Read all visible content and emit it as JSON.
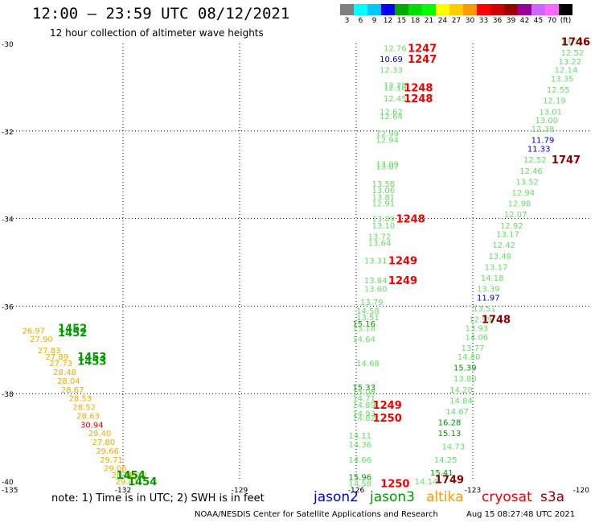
{
  "title": "12:00 – 23:59 UTC 08/12/2021",
  "subtitle": "12 hour collection of altimeter wave heights",
  "colorbar": {
    "colors": [
      "#808080",
      "#00ffff",
      "#00c8ff",
      "#0000ff",
      "#00aa00",
      "#00dd00",
      "#00ff00",
      "#ffff00",
      "#ffcc00",
      "#ff9900",
      "#ff0000",
      "#cc0000",
      "#990000",
      "#990099",
      "#cc66ff",
      "#ff66ff",
      "#000000"
    ],
    "labels": [
      "3",
      "6",
      "9",
      "12",
      "15",
      "18",
      "21",
      "24",
      "27",
      "30",
      "33",
      "36",
      "39",
      "42",
      "45",
      "70",
      "(ft)"
    ]
  },
  "axes": {
    "lat_ticks": [
      "-30",
      "-32",
      "-34",
      "-36",
      "-38",
      "-40"
    ],
    "lon_ticks": [
      "-135",
      "-132",
      "-129",
      "-126",
      "-123",
      "-120"
    ],
    "lat_range": [
      -40,
      -30
    ],
    "lon_range": [
      -135,
      -120
    ]
  },
  "readings": [
    {
      "lon": -125.0,
      "lat": -30.1,
      "v": "12.76",
      "c": "#66dd66"
    },
    {
      "lon": -125.1,
      "lat": -30.35,
      "v": "10.69",
      "c": "#0000cc"
    },
    {
      "lon": -125.1,
      "lat": -30.6,
      "v": "12.33",
      "c": "#66dd66"
    },
    {
      "lon": -125.0,
      "lat": -30.95,
      "v": "12.28",
      "c": "#66dd66"
    },
    {
      "lon": -125.0,
      "lat": -31.0,
      "v": "12.18",
      "c": "#66dd66"
    },
    {
      "lon": -125.0,
      "lat": -31.25,
      "v": "12.45",
      "c": "#66dd66"
    },
    {
      "lon": -125.1,
      "lat": -31.55,
      "v": "12.62",
      "c": "#66dd66"
    },
    {
      "lon": -125.1,
      "lat": -31.65,
      "v": "12.64",
      "c": "#66dd66"
    },
    {
      "lon": -125.2,
      "lat": -32.05,
      "v": "12.99",
      "c": "#66dd66"
    },
    {
      "lon": -125.2,
      "lat": -32.2,
      "v": "12.94",
      "c": "#66dd66"
    },
    {
      "lon": -125.2,
      "lat": -32.75,
      "v": "13.09",
      "c": "#66dd66"
    },
    {
      "lon": -125.2,
      "lat": -32.8,
      "v": "13.07",
      "c": "#66dd66"
    },
    {
      "lon": -125.3,
      "lat": -33.2,
      "v": "13.58",
      "c": "#66dd66"
    },
    {
      "lon": -125.3,
      "lat": -33.35,
      "v": "13.06",
      "c": "#66dd66"
    },
    {
      "lon": -125.3,
      "lat": -33.5,
      "v": "13.81",
      "c": "#66dd66"
    },
    {
      "lon": -125.3,
      "lat": -33.65,
      "v": "12.91",
      "c": "#66dd66"
    },
    {
      "lon": -125.3,
      "lat": -34.0,
      "v": "13.89",
      "c": "#66dd66"
    },
    {
      "lon": -125.3,
      "lat": -34.15,
      "v": "13.10",
      "c": "#66dd66"
    },
    {
      "lon": -125.4,
      "lat": -34.4,
      "v": "13.72",
      "c": "#66dd66"
    },
    {
      "lon": -125.4,
      "lat": -34.55,
      "v": "13.64",
      "c": "#66dd66"
    },
    {
      "lon": -125.5,
      "lat": -34.95,
      "v": "13.31",
      "c": "#66dd66"
    },
    {
      "lon": -125.5,
      "lat": -35.4,
      "v": "13.84",
      "c": "#66dd66"
    },
    {
      "lon": -125.5,
      "lat": -35.6,
      "v": "13.60",
      "c": "#66dd66"
    },
    {
      "lon": -125.6,
      "lat": -35.9,
      "v": "13.79",
      "c": "#66dd66"
    },
    {
      "lon": -125.7,
      "lat": -36.1,
      "v": "14.58",
      "c": "#66dd66"
    },
    {
      "lon": -125.7,
      "lat": -36.25,
      "v": "13.51",
      "c": "#66dd66"
    },
    {
      "lon": -125.8,
      "lat": -36.4,
      "v": "15.16",
      "c": "#009900"
    },
    {
      "lon": -125.8,
      "lat": -36.5,
      "v": "15.18",
      "c": "#66dd66"
    },
    {
      "lon": -125.8,
      "lat": -36.75,
      "v": "14.64",
      "c": "#66dd66"
    },
    {
      "lon": -125.7,
      "lat": -37.3,
      "v": "14.68",
      "c": "#66dd66"
    },
    {
      "lon": -125.8,
      "lat": -37.85,
      "v": "15.33",
      "c": "#009900"
    },
    {
      "lon": -125.8,
      "lat": -37.95,
      "v": "15.08",
      "c": "#66dd66"
    },
    {
      "lon": -125.8,
      "lat": -38.1,
      "v": "14.71",
      "c": "#66dd66"
    },
    {
      "lon": -125.8,
      "lat": -38.25,
      "v": "14.89",
      "c": "#66dd66"
    },
    {
      "lon": -125.8,
      "lat": -38.45,
      "v": "14.93",
      "c": "#66dd66"
    },
    {
      "lon": -125.8,
      "lat": -38.55,
      "v": "14.82",
      "c": "#66dd66"
    },
    {
      "lon": -125.9,
      "lat": -38.95,
      "v": "14.11",
      "c": "#66dd66"
    },
    {
      "lon": -125.9,
      "lat": -39.15,
      "v": "14.36",
      "c": "#66dd66"
    },
    {
      "lon": -125.9,
      "lat": -39.5,
      "v": "14.66",
      "c": "#66dd66"
    },
    {
      "lon": -125.9,
      "lat": -39.9,
      "v": "15.96",
      "c": "#009900"
    },
    {
      "lon": -125.9,
      "lat": -40.05,
      "v": "14.58",
      "c": "#66dd66"
    },
    {
      "lon": -124.2,
      "lat": -40.0,
      "v": "14.14",
      "c": "#66dd66"
    },
    {
      "lon": -123.8,
      "lat": -39.8,
      "v": "15.41",
      "c": "#009900"
    },
    {
      "lon": -123.7,
      "lat": -39.5,
      "v": "14.25",
      "c": "#66dd66"
    },
    {
      "lon": -123.5,
      "lat": -39.2,
      "v": "14.73",
      "c": "#66dd66"
    },
    {
      "lon": -123.6,
      "lat": -38.9,
      "v": "15.13",
      "c": "#009900"
    },
    {
      "lon": -123.6,
      "lat": -38.65,
      "v": "16.28",
      "c": "#009900"
    },
    {
      "lon": -123.4,
      "lat": -38.4,
      "v": "14.67",
      "c": "#66dd66"
    },
    {
      "lon": -123.3,
      "lat": -38.15,
      "v": "14.84",
      "c": "#66dd66"
    },
    {
      "lon": -123.3,
      "lat": -37.9,
      "v": "14.20",
      "c": "#66dd66"
    },
    {
      "lon": -123.2,
      "lat": -37.65,
      "v": "13.80",
      "c": "#66dd66"
    },
    {
      "lon": -123.2,
      "lat": -37.4,
      "v": "15.39",
      "c": "#009900"
    },
    {
      "lon": -123.1,
      "lat": -37.15,
      "v": "14.80",
      "c": "#66dd66"
    },
    {
      "lon": -123.0,
      "lat": -36.95,
      "v": "13.77",
      "c": "#66dd66"
    },
    {
      "lon": -122.9,
      "lat": -36.7,
      "v": "14.06",
      "c": "#66dd66"
    },
    {
      "lon": -122.9,
      "lat": -36.5,
      "v": "13.93",
      "c": "#66dd66"
    },
    {
      "lon": -122.8,
      "lat": -36.3,
      "v": "12.99",
      "c": "#66dd66"
    },
    {
      "lon": -122.7,
      "lat": -36.05,
      "v": "13.51",
      "c": "#66dd66"
    },
    {
      "lon": -122.6,
      "lat": -35.8,
      "v": "11.97",
      "c": "#0000cc"
    },
    {
      "lon": -122.6,
      "lat": -35.6,
      "v": "13.39",
      "c": "#66dd66"
    },
    {
      "lon": -122.5,
      "lat": -35.35,
      "v": "14.18",
      "c": "#66dd66"
    },
    {
      "lon": -122.4,
      "lat": -35.1,
      "v": "13.17",
      "c": "#66dd66"
    },
    {
      "lon": -122.3,
      "lat": -34.85,
      "v": "13.48",
      "c": "#66dd66"
    },
    {
      "lon": -122.2,
      "lat": -34.6,
      "v": "12.42",
      "c": "#66dd66"
    },
    {
      "lon": -122.1,
      "lat": -34.35,
      "v": "13.17",
      "c": "#66dd66"
    },
    {
      "lon": -122.0,
      "lat": -34.15,
      "v": "12.92",
      "c": "#66dd66"
    },
    {
      "lon": -121.9,
      "lat": -33.9,
      "v": "12.07",
      "c": "#66dd66"
    },
    {
      "lon": -121.8,
      "lat": -33.65,
      "v": "12.98",
      "c": "#66dd66"
    },
    {
      "lon": -121.7,
      "lat": -33.4,
      "v": "12.94",
      "c": "#66dd66"
    },
    {
      "lon": -121.6,
      "lat": -33.15,
      "v": "13.52",
      "c": "#66dd66"
    },
    {
      "lon": -121.5,
      "lat": -32.9,
      "v": "12.46",
      "c": "#66dd66"
    },
    {
      "lon": -121.4,
      "lat": -32.65,
      "v": "12.52",
      "c": "#66dd66"
    },
    {
      "lon": -121.3,
      "lat": -32.4,
      "v": "11.33",
      "c": "#0000cc"
    },
    {
      "lon": -121.2,
      "lat": -32.2,
      "v": "11.79",
      "c": "#0000cc"
    },
    {
      "lon": -121.2,
      "lat": -31.95,
      "v": "12.38",
      "c": "#66dd66"
    },
    {
      "lon": -121.1,
      "lat": -31.75,
      "v": "13.00",
      "c": "#66dd66"
    },
    {
      "lon": -121.0,
      "lat": -31.55,
      "v": "13.01",
      "c": "#66dd66"
    },
    {
      "lon": -120.9,
      "lat": -31.3,
      "v": "12.19",
      "c": "#66dd66"
    },
    {
      "lon": -120.8,
      "lat": -31.05,
      "v": "12.55",
      "c": "#66dd66"
    },
    {
      "lon": -120.7,
      "lat": -30.8,
      "v": "13.35",
      "c": "#66dd66"
    },
    {
      "lon": -120.6,
      "lat": -30.6,
      "v": "12.14",
      "c": "#66dd66"
    },
    {
      "lon": -120.5,
      "lat": -30.4,
      "v": "13.22",
      "c": "#66dd66"
    },
    {
      "lon": -120.4,
      "lat": -30.2,
      "v": "12.52",
      "c": "#66dd66"
    },
    {
      "lon": -120.3,
      "lat": -29.95,
      "v": "13.11",
      "c": "#66dd66"
    },
    {
      "lon": -134.3,
      "lat": -36.55,
      "v": "26.97",
      "c": "#eeaa00"
    },
    {
      "lon": -134.1,
      "lat": -36.75,
      "v": "27.90",
      "c": "#eeaa00"
    },
    {
      "lon": -133.9,
      "lat": -37.0,
      "v": "27.83",
      "c": "#eeaa00"
    },
    {
      "lon": -133.7,
      "lat": -37.15,
      "v": "27.89",
      "c": "#eeaa00"
    },
    {
      "lon": -133.6,
      "lat": -37.3,
      "v": "27.73",
      "c": "#eeaa00"
    },
    {
      "lon": -133.5,
      "lat": -37.5,
      "v": "28.48",
      "c": "#eeaa00"
    },
    {
      "lon": -133.4,
      "lat": -37.7,
      "v": "28.04",
      "c": "#eeaa00"
    },
    {
      "lon": -133.3,
      "lat": -37.9,
      "v": "28.67",
      "c": "#eeaa00"
    },
    {
      "lon": -133.1,
      "lat": -38.1,
      "v": "28.53",
      "c": "#eeaa00"
    },
    {
      "lon": -133.0,
      "lat": -38.3,
      "v": "28.52",
      "c": "#eeaa00"
    },
    {
      "lon": -132.9,
      "lat": -38.5,
      "v": "28.63",
      "c": "#eeaa00"
    },
    {
      "lon": -132.8,
      "lat": -38.7,
      "v": "30.94",
      "c": "#ee0000"
    },
    {
      "lon": -132.6,
      "lat": -38.9,
      "v": "29.40",
      "c": "#eeaa00"
    },
    {
      "lon": -132.5,
      "lat": -39.1,
      "v": "27.80",
      "c": "#eeaa00"
    },
    {
      "lon": -132.4,
      "lat": -39.3,
      "v": "29.66",
      "c": "#eeaa00"
    },
    {
      "lon": -132.3,
      "lat": -39.5,
      "v": "29.71",
      "c": "#eeaa00"
    },
    {
      "lon": -132.2,
      "lat": -39.7,
      "v": "29.06",
      "c": "#eeaa00"
    },
    {
      "lon": -132.0,
      "lat": -39.85,
      "v": "28.36",
      "c": "#eeaa00"
    },
    {
      "lon": -131.9,
      "lat": -40.0,
      "v": "29.41",
      "c": "#eeaa00"
    },
    {
      "lon": -131.7,
      "lat": -39.85,
      "v": "28.00",
      "c": "#eeaa00"
    }
  ],
  "times": [
    {
      "lon": -124.3,
      "lat": -30.1,
      "t": "1247",
      "c": "#ee0000"
    },
    {
      "lon": -124.3,
      "lat": -30.35,
      "t": "1247",
      "c": "#ee0000"
    },
    {
      "lon": -124.4,
      "lat": -31.0,
      "t": "1248",
      "c": "#ee0000"
    },
    {
      "lon": -124.4,
      "lat": -31.25,
      "t": "1248",
      "c": "#ee0000"
    },
    {
      "lon": -124.6,
      "lat": -34.0,
      "t": "1248",
      "c": "#ee0000"
    },
    {
      "lon": -124.8,
      "lat": -34.95,
      "t": "1249",
      "c": "#ee0000"
    },
    {
      "lon": -124.8,
      "lat": -35.4,
      "t": "1249",
      "c": "#ee0000"
    },
    {
      "lon": -125.2,
      "lat": -38.25,
      "t": "1249",
      "c": "#ee0000"
    },
    {
      "lon": -125.2,
      "lat": -38.55,
      "t": "1250",
      "c": "#ee0000"
    },
    {
      "lon": -125.0,
      "lat": -40.05,
      "t": "1250",
      "c": "#ee0000"
    },
    {
      "lon": -123.6,
      "lat": -39.95,
      "t": "1749",
      "c": "#880000"
    },
    {
      "lon": -122.4,
      "lat": -36.3,
      "t": "1748",
      "c": "#880000"
    },
    {
      "lon": -120.6,
      "lat": -32.65,
      "t": "1747",
      "c": "#880000"
    },
    {
      "lon": -119.6,
      "lat": -29.95,
      "t": "1746",
      "c": "#880000"
    },
    {
      "lon": -133.3,
      "lat": -36.5,
      "t": "1452",
      "c": "#009900"
    },
    {
      "lon": -133.3,
      "lat": -36.6,
      "t": "1452",
      "c": "#009900"
    },
    {
      "lon": -132.8,
      "lat": -37.15,
      "t": "1453",
      "c": "#009900"
    },
    {
      "lon": -132.8,
      "lat": -37.25,
      "t": "1453",
      "c": "#009900"
    },
    {
      "lon": -131.8,
      "lat": -39.85,
      "t": "1454",
      "c": "#009900"
    },
    {
      "lon": -131.5,
      "lat": -40.0,
      "t": "1454",
      "c": "#009900"
    }
  ],
  "note": "note:  1) Time is in UTC;  2) SWH is in feet",
  "legend": [
    {
      "label": "jason2",
      "color": "#0000cc"
    },
    {
      "label": "jason3",
      "color": "#009900"
    },
    {
      "label": "altika",
      "color": "#ff9900"
    },
    {
      "label": "cryosat",
      "color": "#ee0000"
    },
    {
      "label": "s3a",
      "color": "#880000"
    }
  ],
  "footer_left": "NOAA/NESDIS Center for Satellite Applications and Research",
  "footer_right": "Aug 15 08:27:48 UTC 2021"
}
